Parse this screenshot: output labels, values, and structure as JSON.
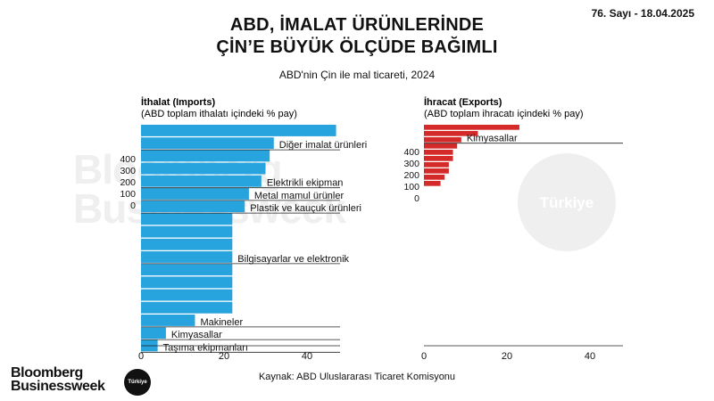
{
  "issue": "76. Sayı - 18.04.2025",
  "title": [
    "ABD, İMALAT ÜRÜNLERİNDE",
    "ÇİN’E BÜYÜK ÖLÇÜDE BAĞIMLI"
  ],
  "subtitle": "ABD'nin Çin ile mal ticareti, 2024",
  "watermark": {
    "line1": "Bloomberg",
    "line2": "Businessweek",
    "badge": "Türkiye"
  },
  "source": "Kaynak: ABD Uluslararası Ticaret Komisyonu",
  "logo": {
    "line1": "Bloomberg",
    "line2": "Businessweek",
    "badge": "Türkiye"
  },
  "colors": {
    "imports": "#27a3dd",
    "exports": "#d42a2a"
  },
  "chart_data": [
    {
      "type": "bar",
      "orientation": "horizontal",
      "title": "İthalat (Imports)",
      "subtitle": "(ABD toplam ithalatı içindeki % pay)",
      "xlim": [
        0,
        48
      ],
      "xticks": [
        0,
        20,
        40
      ],
      "grid": false,
      "bars": [
        47,
        32,
        31,
        30,
        29,
        26,
        25,
        22,
        22,
        22,
        22,
        22,
        22,
        22,
        22,
        13,
        6,
        4
      ],
      "category_labels": [
        {
          "label": "Diğer imalat ürünleri",
          "bar": 1
        },
        {
          "label": "Elektrikli ekipman",
          "bar": 4
        },
        {
          "label": "Metal mamul ürünler",
          "bar": 5
        },
        {
          "label": "Plastik ve kauçuk ürünleri",
          "bar": 6
        },
        {
          "label": "Bilgisayarlar ve elektronik",
          "bar": 10
        },
        {
          "label": "Makineler",
          "bar": 15
        },
        {
          "label": "Kimyasallar",
          "bar": 16
        },
        {
          "label": "Taşıma ekipmanları",
          "bar": 17
        }
      ],
      "scale_legend": [
        "400",
        "300",
        "200",
        "100",
        "0"
      ]
    },
    {
      "type": "bar",
      "orientation": "horizontal",
      "title": "İhracat (Exports)",
      "subtitle": "(ABD toplam ihracatı içindeki % pay)",
      "xlim": [
        0,
        48
      ],
      "xticks": [
        0,
        20,
        40
      ],
      "grid": false,
      "bars": [
        23,
        13,
        9,
        8,
        7,
        7,
        6,
        6,
        5,
        4
      ],
      "category_labels": [
        {
          "label": "Kimyasallar",
          "bar": 2
        }
      ],
      "scale_legend": [
        "400",
        "300",
        "200",
        "100",
        "0"
      ]
    }
  ]
}
